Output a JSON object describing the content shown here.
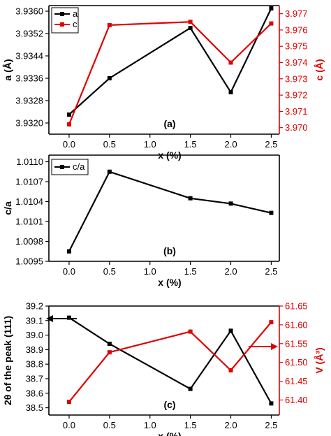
{
  "chart_data": [
    {
      "type": "line",
      "panel_label": "(a)",
      "xlabel": "x (%)",
      "x": [
        0.0,
        0.5,
        1.5,
        2.0,
        2.5
      ],
      "x_ticks": [
        "0.0",
        "0.5",
        "1.0",
        "1.5",
        "2.0",
        "2.5"
      ],
      "xlim": [
        -0.25,
        2.6
      ],
      "left_axis": {
        "label": "a (Å)",
        "ylim": [
          3.9316,
          3.9362
        ],
        "ticks": [
          "3.9320",
          "3.9328",
          "3.9336",
          "3.9344",
          "3.9352",
          "3.9360"
        ],
        "color": "#000000"
      },
      "right_axis": {
        "label": "c (Å)",
        "ylim": [
          3.9696,
          3.9775
        ],
        "ticks": [
          "3.970",
          "3.971",
          "3.972",
          "3.973",
          "3.974",
          "3.975",
          "3.976",
          "3.977"
        ],
        "color": "#e00000"
      },
      "series": [
        {
          "name": "a",
          "axis": "left",
          "color": "#000000",
          "values": [
            3.9323,
            3.9336,
            3.9354,
            3.9331,
            3.9361
          ]
        },
        {
          "name": "c",
          "axis": "right",
          "color": "#e00000",
          "values": [
            3.9702,
            3.9763,
            3.9765,
            3.974,
            3.9764
          ]
        }
      ],
      "legend": "top-left"
    },
    {
      "type": "line",
      "panel_label": "(b)",
      "xlabel": "x (%)",
      "x": [
        0.0,
        0.5,
        1.5,
        2.0,
        2.5
      ],
      "x_ticks": [
        "0.0",
        "0.5",
        "1.0",
        "1.5",
        "2.0",
        "2.5"
      ],
      "xlim": [
        -0.25,
        2.6
      ],
      "left_axis": {
        "label": "c/a",
        "ylim": [
          1.0095,
          1.0111
        ],
        "ticks": [
          "1.0095",
          "1.0098",
          "1.0101",
          "1.0104",
          "1.0107",
          "1.0110"
        ],
        "color": "#000000"
      },
      "series": [
        {
          "name": "c/a",
          "axis": "left",
          "color": "#000000",
          "values": [
            1.00965,
            1.01085,
            1.01045,
            1.01037,
            1.01023
          ]
        }
      ],
      "legend": "top-left"
    },
    {
      "type": "line",
      "panel_label": "(c)",
      "xlabel": "x (%)",
      "x": [
        0.0,
        0.5,
        1.5,
        2.0,
        2.5
      ],
      "x_ticks": [
        "0.0",
        "0.5",
        "1.0",
        "1.5",
        "2.0",
        "2.5"
      ],
      "xlim": [
        -0.25,
        2.6
      ],
      "left_axis": {
        "label": "2θ of the peak (111)",
        "ylim": [
          38.45,
          39.2
        ],
        "ticks": [
          "38.5",
          "38.6",
          "38.7",
          "38.8",
          "38.9",
          "39.0",
          "39.1",
          "39.2"
        ],
        "color": "#000000"
      },
      "right_axis": {
        "label": "V (Å³)",
        "ylim": [
          61.36,
          61.65
        ],
        "ticks": [
          "61.40",
          "61.45",
          "61.50",
          "61.55",
          "61.60",
          "61.65"
        ],
        "color": "#e00000"
      },
      "series": [
        {
          "axis": "left",
          "color": "#000000",
          "values": [
            39.12,
            38.94,
            38.63,
            39.03,
            38.53
          ]
        },
        {
          "axis": "right",
          "color": "#e00000",
          "values": [
            61.395,
            61.527,
            61.582,
            61.479,
            61.607
          ]
        }
      ]
    }
  ]
}
